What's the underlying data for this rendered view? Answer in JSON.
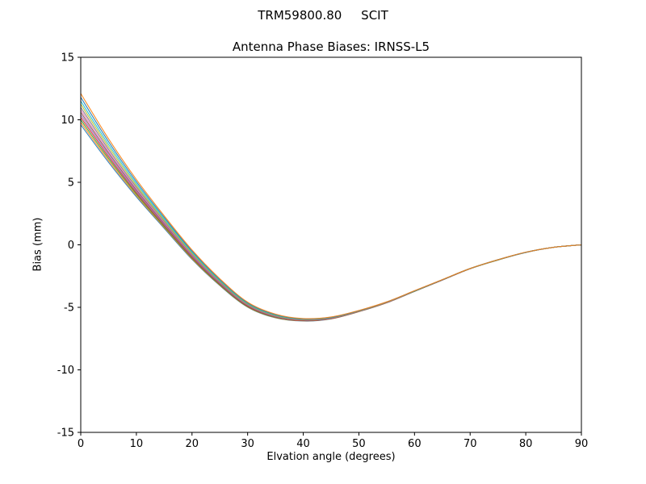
{
  "chart_data": {
    "type": "line",
    "suptitle": "TRM59800.80     SCIT",
    "title": "Antenna Phase Biases: IRNSS-L5",
    "xlabel": "Elvation angle (degrees)",
    "ylabel": "Bias (mm)",
    "xlim": [
      0,
      90
    ],
    "ylim": [
      -15,
      15
    ],
    "xticks": [
      0,
      10,
      20,
      30,
      40,
      50,
      60,
      70,
      80,
      90
    ],
    "yticks": [
      -15,
      -10,
      -5,
      0,
      5,
      10,
      15
    ],
    "grid": false,
    "legend": "none",
    "x": [
      0,
      5,
      10,
      15,
      20,
      25,
      30,
      35,
      40,
      45,
      50,
      55,
      60,
      65,
      70,
      75,
      80,
      85,
      90
    ],
    "series": [
      {
        "name": "line-1",
        "color": "#1f77b4",
        "values": [
          9.6,
          6.6,
          3.84,
          1.32,
          -1.16,
          -3.26,
          -4.99,
          -5.84,
          -6.1,
          -5.92,
          -5.35,
          -4.64,
          -3.72,
          -2.82,
          -1.91,
          -1.21,
          -0.61,
          -0.2,
          0
        ]
      },
      {
        "name": "line-2",
        "color": "#ff7f0e",
        "values": [
          9.8,
          6.75,
          3.95,
          1.4,
          -1.1,
          -3.22,
          -4.96,
          -5.82,
          -6.08,
          -5.91,
          -5.34,
          -4.63,
          -3.72,
          -2.82,
          -1.91,
          -1.21,
          -0.61,
          -0.2,
          0
        ]
      },
      {
        "name": "line-3",
        "color": "#2ca02c",
        "values": [
          10.0,
          6.9,
          4.06,
          1.48,
          -1.04,
          -3.18,
          -4.93,
          -5.8,
          -6.06,
          -5.9,
          -5.33,
          -4.62,
          -3.72,
          -2.81,
          -1.91,
          -1.21,
          -0.6,
          -0.2,
          0
        ]
      },
      {
        "name": "line-4",
        "color": "#d62728",
        "values": [
          10.2,
          7.05,
          4.17,
          1.56,
          -0.98,
          -3.13,
          -4.9,
          -5.77,
          -6.05,
          -5.89,
          -5.32,
          -4.62,
          -3.71,
          -2.81,
          -1.91,
          -1.2,
          -0.6,
          -0.2,
          0
        ]
      },
      {
        "name": "line-5",
        "color": "#9467bd",
        "values": [
          10.4,
          7.2,
          4.28,
          1.64,
          -0.92,
          -3.09,
          -4.86,
          -5.75,
          -6.03,
          -5.87,
          -5.32,
          -4.61,
          -3.71,
          -2.81,
          -1.9,
          -1.2,
          -0.6,
          -0.2,
          0
        ]
      },
      {
        "name": "line-6",
        "color": "#8c564b",
        "values": [
          10.6,
          7.35,
          4.39,
          1.72,
          -0.86,
          -3.04,
          -4.83,
          -5.72,
          -6.02,
          -5.86,
          -5.31,
          -4.61,
          -3.7,
          -2.8,
          -1.9,
          -1.2,
          -0.6,
          -0.2,
          0
        ]
      },
      {
        "name": "line-7",
        "color": "#e377c2",
        "values": [
          10.8,
          7.5,
          4.5,
          1.8,
          -0.8,
          -3.0,
          -4.8,
          -5.7,
          -6.0,
          -5.85,
          -5.3,
          -4.6,
          -3.7,
          -2.8,
          -1.9,
          -1.2,
          -0.6,
          -0.2,
          0
        ]
      },
      {
        "name": "line-8",
        "color": "#7f7f7f",
        "values": [
          11.0,
          7.65,
          4.61,
          1.88,
          -0.74,
          -2.96,
          -4.77,
          -5.68,
          -5.98,
          -5.84,
          -5.29,
          -4.59,
          -3.7,
          -2.8,
          -1.9,
          -1.2,
          -0.6,
          -0.2,
          0
        ]
      },
      {
        "name": "line-9",
        "color": "#bcbd22",
        "values": [
          11.25,
          7.84,
          4.75,
          1.98,
          -0.67,
          -2.9,
          -4.73,
          -5.65,
          -5.96,
          -5.82,
          -5.28,
          -4.59,
          -3.69,
          -2.79,
          -1.9,
          -1.2,
          -0.6,
          -0.2,
          0
        ]
      },
      {
        "name": "line-10",
        "color": "#17becf",
        "values": [
          11.5,
          8.03,
          4.89,
          2.08,
          -0.59,
          -2.85,
          -4.69,
          -5.62,
          -5.94,
          -5.81,
          -5.27,
          -4.58,
          -3.69,
          -2.79,
          -1.89,
          -1.19,
          -0.6,
          -0.2,
          0
        ]
      },
      {
        "name": "line-11",
        "color": "#1f77b4",
        "values": [
          11.8,
          8.25,
          5.05,
          2.2,
          -0.5,
          -2.78,
          -4.64,
          -5.58,
          -5.92,
          -5.79,
          -5.26,
          -4.57,
          -3.68,
          -2.79,
          -1.89,
          -1.19,
          -0.6,
          -0.2,
          0
        ]
      },
      {
        "name": "line-12",
        "color": "#ff7f0e",
        "values": [
          12.1,
          8.48,
          5.22,
          2.32,
          -0.41,
          -2.71,
          -4.59,
          -5.54,
          -5.9,
          -5.77,
          -5.25,
          -4.56,
          -3.67,
          -2.78,
          -1.89,
          -1.19,
          -0.59,
          -0.2,
          0
        ]
      }
    ]
  }
}
